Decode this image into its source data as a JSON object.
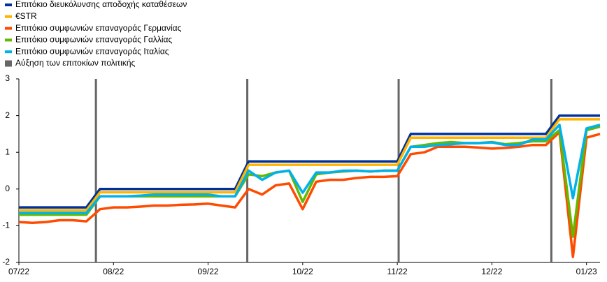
{
  "chart_data": {
    "type": "line",
    "categories": [
      "07/22",
      null,
      null,
      null,
      null,
      null,
      null,
      "08/22",
      null,
      null,
      null,
      null,
      null,
      null,
      "09/22",
      null,
      null,
      null,
      null,
      null,
      null,
      "10/22",
      null,
      null,
      null,
      null,
      null,
      null,
      "11/22",
      null,
      null,
      null,
      null,
      null,
      null,
      "12/22",
      null,
      null,
      null,
      null,
      null,
      null,
      "01/23",
      null
    ],
    "ylim": [
      -2,
      3
    ],
    "yticks": [
      3,
      2,
      1,
      0,
      -1,
      -2
    ],
    "series": [
      {
        "name": "Επιτόκιο διευκόλυνσης αποδοχής καταθέσεων",
        "color": "#003299",
        "values": [
          -0.5,
          -0.5,
          -0.5,
          -0.5,
          -0.5,
          -0.5,
          0,
          0,
          0,
          0,
          0,
          0,
          0,
          0,
          0,
          0,
          0,
          0.75,
          0.75,
          0.75,
          0.75,
          0.75,
          0.75,
          0.75,
          0.75,
          0.75,
          0.75,
          0.75,
          0.75,
          1.5,
          1.5,
          1.5,
          1.5,
          1.5,
          1.5,
          1.5,
          1.5,
          1.5,
          1.5,
          1.5,
          2,
          2,
          2,
          2
        ]
      },
      {
        "name": "€STR",
        "color": "#ffb400",
        "values": [
          -0.58,
          -0.58,
          -0.58,
          -0.58,
          -0.58,
          -0.58,
          -0.09,
          -0.09,
          -0.09,
          -0.09,
          -0.09,
          -0.09,
          -0.09,
          -0.09,
          -0.09,
          -0.09,
          -0.09,
          0.66,
          0.66,
          0.66,
          0.66,
          0.66,
          0.66,
          0.66,
          0.66,
          0.66,
          0.66,
          0.66,
          0.66,
          1.4,
          1.4,
          1.4,
          1.4,
          1.4,
          1.4,
          1.4,
          1.4,
          1.4,
          1.4,
          1.4,
          1.9,
          1.9,
          1.9,
          1.9
        ]
      },
      {
        "name": "Επιτόκιο συμφωνιών επαναγοράς Γερμανίας",
        "color": "#ff4b00",
        "values": [
          -0.9,
          -0.92,
          -0.9,
          -0.85,
          -0.85,
          -0.88,
          -0.55,
          -0.5,
          -0.5,
          -0.48,
          -0.45,
          -0.45,
          -0.43,
          -0.42,
          -0.4,
          -0.45,
          -0.5,
          0,
          -0.15,
          0.1,
          0.15,
          -0.55,
          0.2,
          0.25,
          0.25,
          0.3,
          0.33,
          0.33,
          0.35,
          0.95,
          1,
          1.15,
          1.15,
          1.15,
          1.13,
          1.1,
          1.12,
          1.15,
          1.2,
          1.2,
          1.55,
          -1.85,
          1.4,
          1.5
        ]
      },
      {
        "name": "Επιτόκιο συμφωνιών επαναγοράς Γαλλίας",
        "color": "#65b800",
        "values": [
          -0.7,
          -0.7,
          -0.7,
          -0.7,
          -0.7,
          -0.7,
          -0.2,
          -0.2,
          -0.2,
          -0.2,
          -0.2,
          -0.2,
          -0.2,
          -0.2,
          -0.2,
          -0.2,
          -0.2,
          0.4,
          0.35,
          0.45,
          0.5,
          -0.35,
          0.4,
          0.45,
          0.48,
          0.5,
          0.48,
          0.5,
          0.5,
          1.15,
          1.2,
          1.25,
          1.28,
          1.25,
          1.25,
          1.28,
          1.22,
          1.25,
          1.3,
          1.3,
          1.6,
          -1.3,
          1.6,
          1.7
        ]
      },
      {
        "name": "Επιτόκιο συμφωνιών επαναγοράς Ιταλίας",
        "color": "#00b1ea",
        "values": [
          -0.65,
          -0.65,
          -0.65,
          -0.65,
          -0.65,
          -0.65,
          -0.2,
          -0.2,
          -0.2,
          -0.18,
          -0.15,
          -0.15,
          -0.15,
          -0.15,
          -0.15,
          -0.2,
          -0.2,
          0.5,
          0.25,
          0.45,
          0.5,
          -0.1,
          0.45,
          0.45,
          0.5,
          0.5,
          0.48,
          0.5,
          0.5,
          1.15,
          1.15,
          1.2,
          1.22,
          1.25,
          1.25,
          1.27,
          1.2,
          1.2,
          1.35,
          1.35,
          1.75,
          -0.25,
          1.65,
          1.75
        ]
      }
    ],
    "events": {
      "name": "Αύξηση των επιτοκίων πολιτικής",
      "color": "#666666",
      "x": [
        5.7,
        16.9,
        28.1,
        39.4
      ]
    }
  }
}
